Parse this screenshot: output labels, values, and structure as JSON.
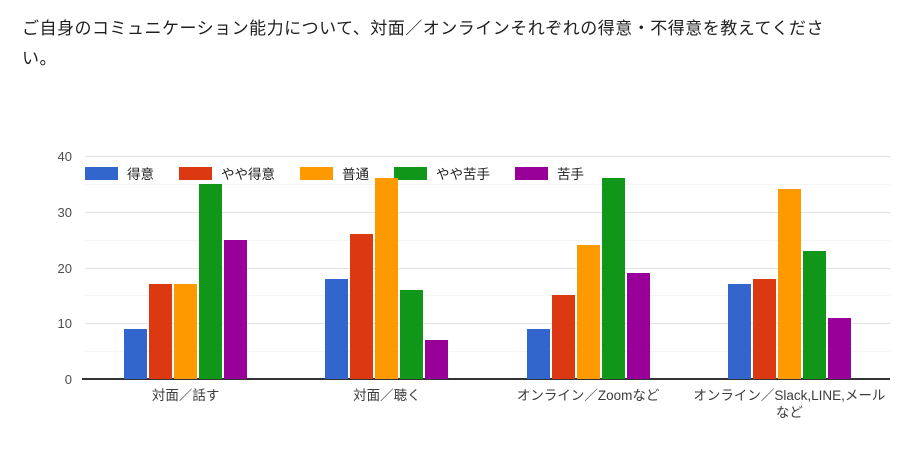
{
  "question": {
    "title": "ご自身のコミュニケーション能力について、対面／オンラインそれぞれの得意・不得意を教えてください。"
  },
  "chart_data": {
    "type": "bar",
    "title": "",
    "xlabel": "",
    "ylabel": "",
    "categories": [
      "対面／話す",
      "対面／聴く",
      "オンライン／Zoomなど",
      "オンライン／Slack,LINE,メールなど"
    ],
    "series": [
      {
        "name": "得意",
        "color": "#3366CC",
        "values": [
          9,
          18,
          9,
          17
        ]
      },
      {
        "name": "やや得意",
        "color": "#DC3912",
        "values": [
          17,
          26,
          15,
          18
        ]
      },
      {
        "name": "普通",
        "color": "#FF9900",
        "values": [
          17,
          36,
          24,
          34
        ]
      },
      {
        "name": "やや苦手",
        "color": "#109618",
        "values": [
          35,
          16,
          36,
          23
        ]
      },
      {
        "name": "苦手",
        "color": "#990099",
        "values": [
          25,
          7,
          19,
          11
        ]
      }
    ],
    "ylim": [
      0,
      40
    ],
    "yticks": [
      0,
      10,
      20,
      30,
      40
    ],
    "grid": true,
    "minor_grid": true,
    "legend_position": "top-left-inside",
    "colors": {
      "grid_major": "#e3e3e3",
      "grid_minor": "#f4f4f4",
      "axis_baseline": "#333333",
      "tick_label": "#4d4d4d",
      "category_label": "#3c3c3c",
      "title_text": "#1f1f1f",
      "background": "#ffffff"
    }
  }
}
